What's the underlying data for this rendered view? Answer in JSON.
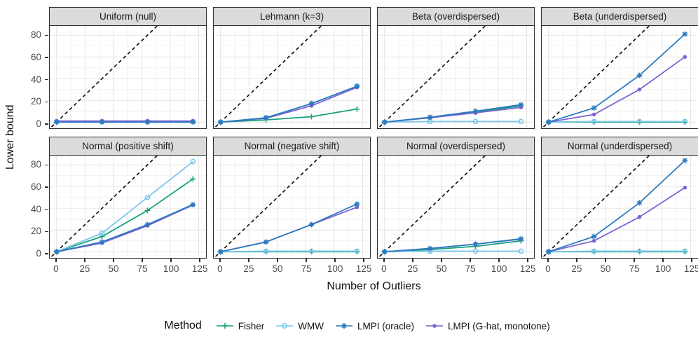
{
  "figure": {
    "y_axis_title": "Lower bound",
    "x_axis_title": "Number of Outliers",
    "y_ticks": [
      0,
      20,
      40,
      60,
      80
    ],
    "x_ticks": [
      0,
      25,
      50,
      75,
      100,
      125
    ],
    "legend": {
      "title": "Method",
      "items": [
        {
          "label": "Fisher",
          "color": "#12A17B",
          "marker": "plus"
        },
        {
          "label": "WMW",
          "color": "#7CC6EA",
          "marker": "circle-open"
        },
        {
          "label": "LMPI (oracle)",
          "color": "#2B7BBE",
          "marker": "asterisk"
        },
        {
          "label": "LMPI (G-hat, monotone)",
          "color": "#7C62D4",
          "marker": "circle-filled"
        }
      ]
    },
    "colors": {
      "reference_line": "#111111",
      "strip_background": "#DBDBDB",
      "panel_border": "#2E2E2E",
      "grid_major": "#E4E4E4",
      "grid_minor": "#F1F1F1",
      "axis_text": "#4d4d4d"
    }
  },
  "chart_data": {
    "type": "line",
    "facets": "2 rows x 4 columns",
    "x": [
      0,
      40,
      80,
      120
    ],
    "x_range": [
      -6,
      131
    ],
    "y_range": [
      -4.5,
      88.5
    ],
    "xlabel": "Number of Outliers",
    "ylabel": "Lower bound",
    "grid": "major and minor gridlines on",
    "legend_position": "bottom",
    "reference_line": "dashed black identity line y = x in every panel",
    "methods": [
      "Fisher",
      "WMW",
      "LMPI (oracle)",
      "LMPI (G-hat, monotone)"
    ],
    "panels": [
      {
        "title": "Uniform (null)",
        "series": [
          [
            0,
            0,
            0,
            0
          ],
          [
            0.5,
            0.5,
            0.5,
            0.5
          ],
          [
            0,
            0,
            0,
            0
          ],
          [
            1,
            1,
            1,
            1
          ]
        ]
      },
      {
        "title": "Lehmann (k=3)",
        "series": [
          [
            0,
            2,
            5,
            12
          ],
          [
            0,
            4,
            17,
            33
          ],
          [
            0,
            4,
            17,
            33
          ],
          [
            0,
            3.5,
            15,
            32
          ]
        ]
      },
      {
        "title": "Beta (overdispersed)",
        "series": [
          [
            0,
            4,
            9,
            15
          ],
          [
            0,
            0.5,
            0.5,
            0.5
          ],
          [
            0,
            4.5,
            10,
            16
          ],
          [
            0,
            4,
            8.5,
            13.5
          ]
        ]
      },
      {
        "title": "Beta (underdispersed)",
        "series": [
          [
            0,
            0,
            0,
            0
          ],
          [
            0,
            0.5,
            0.5,
            0.5
          ],
          [
            0,
            13,
            43,
            81
          ],
          [
            0,
            7,
            30,
            60
          ]
        ]
      },
      {
        "title": "Normal (positive shift)",
        "series": [
          [
            0,
            14,
            38,
            67
          ],
          [
            0,
            17,
            50,
            83
          ],
          [
            0,
            9,
            25,
            43.5
          ],
          [
            0,
            8,
            24,
            43
          ]
        ]
      },
      {
        "title": "Normal (negative shift)",
        "series": [
          [
            0,
            0,
            0,
            0
          ],
          [
            0,
            0.5,
            0.5,
            0.5
          ],
          [
            0,
            9,
            25,
            44
          ],
          [
            0,
            9,
            25,
            41
          ]
        ]
      },
      {
        "title": "Normal (overdispersed)",
        "series": [
          [
            0,
            2,
            5,
            10
          ],
          [
            0,
            0.5,
            0.5,
            0.5
          ],
          [
            0,
            3,
            7,
            12
          ],
          [
            0,
            3,
            7,
            11.5
          ]
        ]
      },
      {
        "title": "Normal (underdispersed)",
        "series": [
          [
            0,
            0,
            0,
            0
          ],
          [
            0,
            0.5,
            0.5,
            0.5
          ],
          [
            0,
            14,
            45,
            84
          ],
          [
            0,
            10,
            32,
            59
          ]
        ]
      }
    ]
  }
}
